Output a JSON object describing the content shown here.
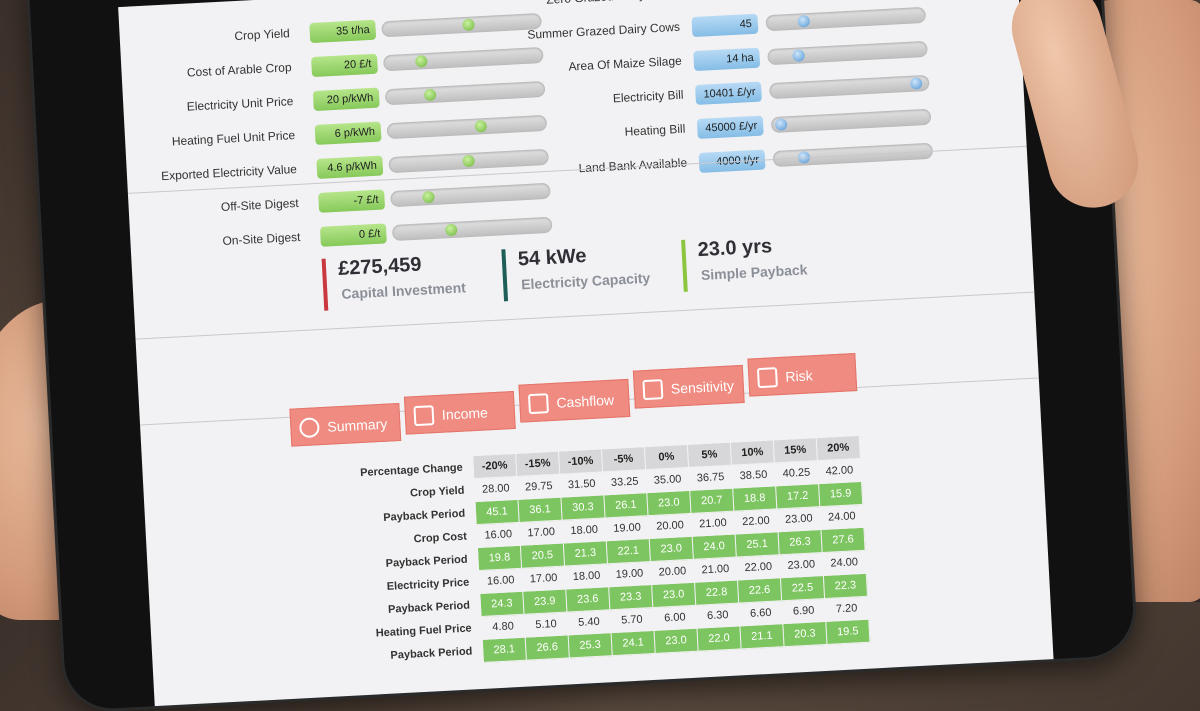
{
  "inputs_left": [
    {
      "label": "Crop Yield",
      "value": "35 t/ha",
      "pos": 0.55
    },
    {
      "label": "Cost of Arable Crop",
      "value": "20 £/t",
      "pos": 0.2
    },
    {
      "label": "Electricity Unit Price",
      "value": "20 p/kWh",
      "pos": 0.25
    },
    {
      "label": "Heating Fuel Unit Price",
      "value": "6 p/kWh",
      "pos": 0.6
    },
    {
      "label": "Exported Electricity Value",
      "value": "4.6 p/kWh",
      "pos": 0.5
    },
    {
      "label": "Off-Site Digest",
      "value": "-7 £/t",
      "pos": 0.2
    },
    {
      "label": "On-Site Digest",
      "value": "0 £/t",
      "pos": 0.35
    }
  ],
  "inputs_right": [
    {
      "label": "Zero Grazed Dairy Cows",
      "value": "",
      "pos": 0.0
    },
    {
      "label": "Summer Grazed Dairy Cows",
      "value": "45",
      "pos": 0.2
    },
    {
      "label": "Area Of Maize Silage",
      "value": "14 ha",
      "pos": 0.15
    },
    {
      "label": "Electricity Bill",
      "value": "10401 £/yr",
      "pos": 0.98
    },
    {
      "label": "Heating Bill",
      "value": "45000 £/yr",
      "pos": 0.0
    },
    {
      "label": "Land Bank Available",
      "value": "4000 t/yr",
      "pos": 0.15
    }
  ],
  "metrics": [
    {
      "value": "£275,459",
      "label": "Capital Investment",
      "color": "#c9383e"
    },
    {
      "value": "54 kWe",
      "label": "Electricity Capacity",
      "color": "#1d5f58"
    },
    {
      "value": "23.0 yrs",
      "label": "Simple Payback",
      "color": "#8cc63f"
    }
  ],
  "tabs": [
    {
      "label": "Summary",
      "icon": "pie-chart-icon"
    },
    {
      "label": "Income",
      "icon": "line-chart-icon"
    },
    {
      "label": "Cashflow",
      "icon": "area-chart-icon"
    },
    {
      "label": "Sensitivity",
      "icon": "table-icon"
    },
    {
      "label": "Risk",
      "icon": "bar-chart-icon"
    }
  ],
  "sensitivity": {
    "header_label": "Percentage Change",
    "columns": [
      "-20%",
      "-15%",
      "-10%",
      "-5%",
      "0%",
      "5%",
      "10%",
      "15%",
      "20%"
    ],
    "rows": [
      {
        "label": "Crop Yield",
        "values": [
          "28.00",
          "29.75",
          "31.50",
          "33.25",
          "35.00",
          "36.75",
          "38.50",
          "40.25",
          "42.00"
        ],
        "green": false
      },
      {
        "label": "Payback Period",
        "values": [
          "45.1",
          "36.1",
          "30.3",
          "26.1",
          "23.0",
          "20.7",
          "18.8",
          "17.2",
          "15.9"
        ],
        "green": true
      },
      {
        "label": "Crop Cost",
        "values": [
          "16.00",
          "17.00",
          "18.00",
          "19.00",
          "20.00",
          "21.00",
          "22.00",
          "23.00",
          "24.00"
        ],
        "green": false
      },
      {
        "label": "Payback Period",
        "values": [
          "19.8",
          "20.5",
          "21.3",
          "22.1",
          "23.0",
          "24.0",
          "25.1",
          "26.3",
          "27.6"
        ],
        "green": true
      },
      {
        "label": "Electricity Price",
        "values": [
          "16.00",
          "17.00",
          "18.00",
          "19.00",
          "20.00",
          "21.00",
          "22.00",
          "23.00",
          "24.00"
        ],
        "green": false
      },
      {
        "label": "Payback Period",
        "values": [
          "24.3",
          "23.9",
          "23.6",
          "23.3",
          "23.0",
          "22.8",
          "22.6",
          "22.5",
          "22.3"
        ],
        "green": true
      },
      {
        "label": "Heating Fuel Price",
        "values": [
          "4.80",
          "5.10",
          "5.40",
          "5.70",
          "6.00",
          "6.30",
          "6.60",
          "6.90",
          "7.20"
        ],
        "green": false
      },
      {
        "label": "Payback Period",
        "values": [
          "28.1",
          "26.6",
          "25.3",
          "24.1",
          "23.0",
          "22.0",
          "21.1",
          "20.3",
          "19.5"
        ],
        "green": true
      }
    ]
  }
}
